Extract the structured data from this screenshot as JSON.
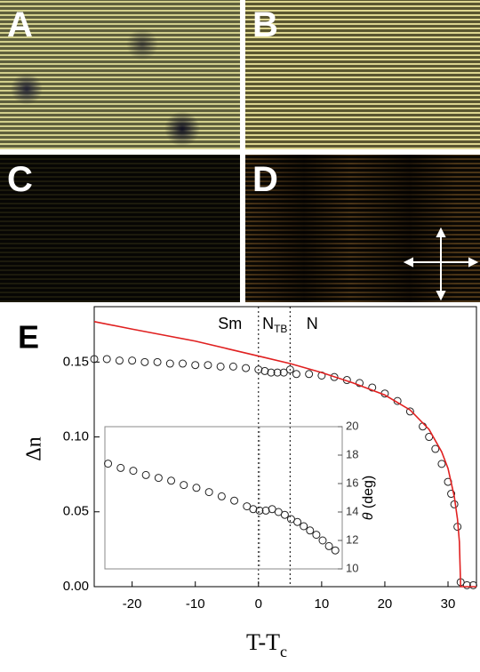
{
  "panels": [
    "A",
    "B",
    "C",
    "D"
  ],
  "chart_data": [
    {
      "type": "line",
      "label": "E",
      "x_label": {
        "text": "T-T",
        "subscript": "c"
      },
      "y_label": "Δn",
      "annotations": [
        {
          "text": "Sm"
        },
        {
          "text": "N",
          "subscript": "TB"
        },
        {
          "text": "N"
        }
      ],
      "vlines": [
        0,
        5
      ],
      "xlim": [
        -26,
        34.5
      ],
      "ylim": [
        0,
        0.187
      ],
      "xticks": [
        -20,
        -10,
        0,
        10,
        20,
        30
      ],
      "yticks": [
        {
          "value": 0,
          "label": "0.00"
        },
        {
          "value": 0.05,
          "label": "0.05"
        },
        {
          "value": 0.1,
          "label": "0.10"
        },
        {
          "value": 0.15,
          "label": "0.15"
        }
      ],
      "series": [
        {
          "style": "markers",
          "color": "#222222",
          "x": [
            -26,
            -24,
            -22,
            -20,
            -18,
            -16,
            -14,
            -12,
            -10,
            -8,
            -6,
            -4,
            -2,
            0,
            1,
            2,
            3,
            4,
            5,
            6,
            8,
            10,
            12,
            14,
            16,
            18,
            20,
            22,
            24,
            26,
            27,
            28,
            29,
            30,
            30.5,
            31,
            31.5,
            32,
            33,
            34
          ],
          "values": [
            0.152,
            0.152,
            0.151,
            0.151,
            0.15,
            0.15,
            0.149,
            0.149,
            0.148,
            0.148,
            0.147,
            0.147,
            0.146,
            0.145,
            0.144,
            0.143,
            0.143,
            0.143,
            0.145,
            0.142,
            0.142,
            0.141,
            0.14,
            0.138,
            0.136,
            0.133,
            0.129,
            0.124,
            0.117,
            0.107,
            0.1,
            0.092,
            0.082,
            0.07,
            0.062,
            0.055,
            0.04,
            0.003,
            0.001,
            0.001
          ]
        },
        {
          "style": "line",
          "color": "#e02020",
          "x": [
            -26,
            -20,
            -15,
            -10,
            -5,
            0,
            5,
            10,
            15,
            20,
            24,
            27,
            29,
            30,
            31,
            31.5,
            31.8,
            32,
            33,
            34.5
          ],
          "values": [
            0.177,
            0.172,
            0.168,
            0.164,
            0.159,
            0.154,
            0.149,
            0.143,
            0.136,
            0.128,
            0.118,
            0.105,
            0.09,
            0.079,
            0.06,
            0.045,
            0.03,
            0,
            0,
            0
          ]
        }
      ]
    },
    {
      "type": "line",
      "y2_label": {
        "symbol": "θ",
        "text": " (deg)"
      },
      "vlines": [
        0
      ],
      "xlim": [
        -24.5,
        13.1
      ],
      "y2lim": [
        10,
        20
      ],
      "y2ticks": [
        10,
        12,
        14,
        16,
        18,
        20
      ],
      "series": [
        {
          "style": "markers",
          "color": "#222222",
          "axis": "y2",
          "x": [
            -24,
            -22,
            -20,
            -18,
            -16,
            -14,
            -12,
            -10,
            -8,
            -6,
            -4,
            -2,
            -1,
            0,
            1,
            2,
            3,
            4,
            5,
            6,
            7,
            8,
            9,
            10,
            11,
            12
          ],
          "values": [
            17.4,
            17.1,
            16.9,
            16.6,
            16.4,
            16.2,
            15.9,
            15.7,
            15.4,
            15.1,
            14.8,
            14.4,
            14.2,
            14.1,
            14.1,
            14.2,
            14.0,
            13.8,
            13.5,
            13.3,
            13.0,
            12.7,
            12.4,
            12.0,
            11.6,
            11.3
          ]
        }
      ]
    }
  ]
}
